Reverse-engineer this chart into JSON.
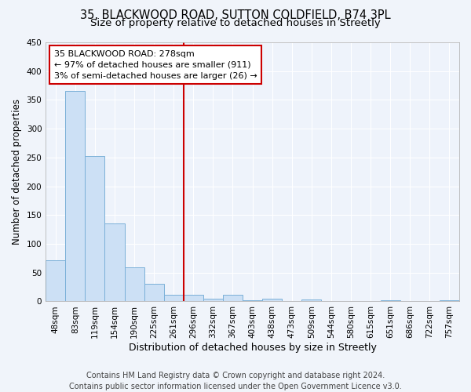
{
  "title1": "35, BLACKWOOD ROAD, SUTTON COLDFIELD, B74 3PL",
  "title2": "Size of property relative to detached houses in Streetly",
  "xlabel": "Distribution of detached houses by size in Streetly",
  "ylabel": "Number of detached properties",
  "bar_labels": [
    "48sqm",
    "83sqm",
    "119sqm",
    "154sqm",
    "190sqm",
    "225sqm",
    "261sqm",
    "296sqm",
    "332sqm",
    "367sqm",
    "403sqm",
    "438sqm",
    "473sqm",
    "509sqm",
    "544sqm",
    "580sqm",
    "615sqm",
    "651sqm",
    "686sqm",
    "722sqm",
    "757sqm"
  ],
  "bar_heights": [
    72,
    365,
    252,
    135,
    59,
    30,
    11,
    11,
    5,
    11,
    2,
    5,
    0,
    3,
    0,
    0,
    0,
    2,
    0,
    0,
    2
  ],
  "bar_color": "#cce0f5",
  "bar_edge_color": "#7ab0d8",
  "vline_color": "#cc0000",
  "annotation_line1": "35 BLACKWOOD ROAD: 278sqm",
  "annotation_line2": "← 97% of detached houses are smaller (911)",
  "annotation_line3": "3% of semi-detached houses are larger (26) →",
  "annotation_box_color": "#ffffff",
  "annotation_box_edge_color": "#cc0000",
  "ylim": [
    0,
    450
  ],
  "yticks": [
    0,
    50,
    100,
    150,
    200,
    250,
    300,
    350,
    400,
    450
  ],
  "footer1": "Contains HM Land Registry data © Crown copyright and database right 2024.",
  "footer2": "Contains public sector information licensed under the Open Government Licence v3.0.",
  "bg_color": "#f0f4fa",
  "plot_bg_color": "#eef3fb",
  "grid_color": "#ffffff",
  "title1_fontsize": 10.5,
  "title2_fontsize": 9.5,
  "xlabel_fontsize": 9,
  "ylabel_fontsize": 8.5,
  "tick_fontsize": 7.5,
  "annot_fontsize": 8,
  "footer_fontsize": 7
}
